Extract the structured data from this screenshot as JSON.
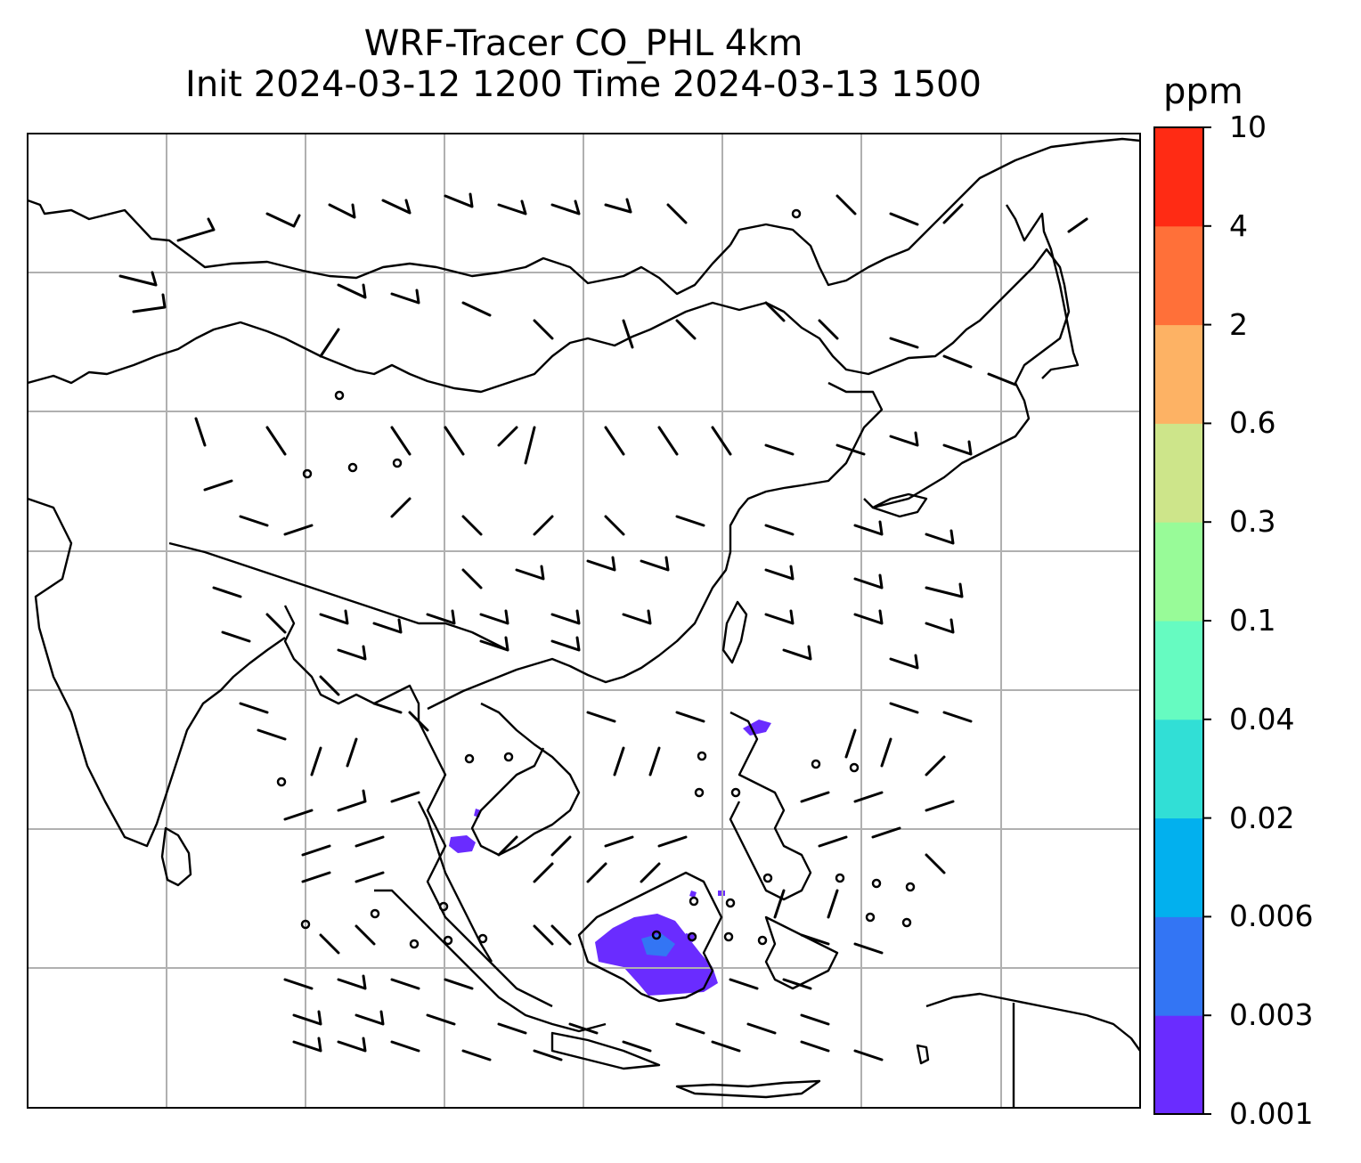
{
  "title": {
    "line1": "WRF-Tracer CO_PHL 4km",
    "line2": "Init 2024-03-12 1200 Time 2024-03-13 1500"
  },
  "colorbar": {
    "unit": "ppm",
    "levels": [
      "0.001",
      "0.003",
      "0.006",
      "0.02",
      "0.04",
      "0.1",
      "0.3",
      "0.6",
      "2",
      "4",
      "10"
    ],
    "colors": [
      "#6a2cff",
      "#3375f4",
      "#02b0ee",
      "#31dfd6",
      "#66fbc1",
      "#98fb98",
      "#cde58a",
      "#fdb264",
      "#ff7039",
      "#ff2b14"
    ]
  },
  "map": {
    "gridlines": true,
    "legend": "colorbar-right",
    "wind_barbs_shown": true
  }
}
